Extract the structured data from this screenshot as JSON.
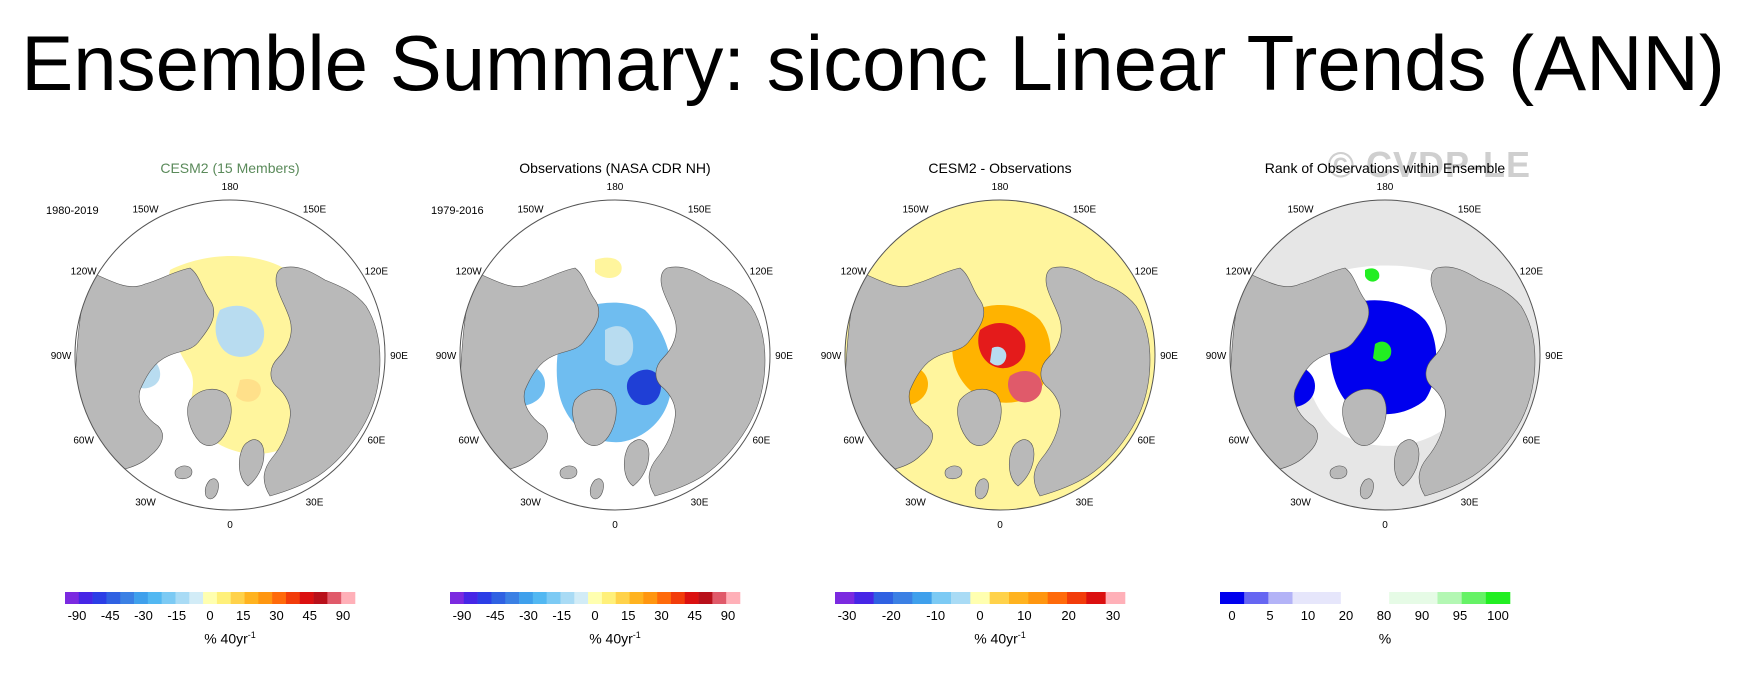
{
  "title": "Ensemble Summary: siconc Linear Trends (ANN)",
  "watermark": "© CVDP-LE",
  "colors": {
    "land": "#b9b9b9",
    "ocean": "#ffffff",
    "pale_yellow": "#fff59d",
    "pale_blue": "#b8dcf0",
    "mid_blue": "#6fbdf0",
    "deep_blue": "#1f3fd6",
    "orange": "#ffb300",
    "red": "#e41b1b",
    "rank_blue": "#0000ee",
    "rank_green": "#22ee22",
    "rank_gray": "#e6e6e6"
  },
  "longitude_labels": [
    "180",
    "150E",
    "120E",
    "90E",
    "60E",
    "30E",
    "0",
    "30W",
    "60W",
    "90W",
    "120W",
    "150W"
  ],
  "panels": [
    {
      "id": "cesm2",
      "title": "CESM2 (15 Members)",
      "years": "1980-2019",
      "colorbar": {
        "colors": [
          "#7b2ae0",
          "#4626e6",
          "#2b3ee6",
          "#2f61e2",
          "#3b80e4",
          "#3fa0ec",
          "#52b8f2",
          "#7ccaf4",
          "#a9dbf5",
          "#d2ecf7",
          "#ffffb0",
          "#fff07a",
          "#ffd24a",
          "#ffb320",
          "#ff9610",
          "#ff6a0a",
          "#f23c0a",
          "#db1010",
          "#b8101a",
          "#e05a6a",
          "#ffb0b8"
        ],
        "labels": [
          "-90",
          "-45",
          "-30",
          "-15",
          "0",
          "15",
          "30",
          "45",
          "90"
        ],
        "unit": "% 40yr",
        "unit_sup": "-1"
      }
    },
    {
      "id": "obs",
      "title": "Observations (NASA CDR NH)",
      "years": "1979-2016",
      "colorbar": {
        "colors": [
          "#7b2ae0",
          "#4626e6",
          "#2b3ee6",
          "#2f61e2",
          "#3b80e4",
          "#3fa0ec",
          "#52b8f2",
          "#7ccaf4",
          "#a9dbf5",
          "#d2ecf7",
          "#ffffb0",
          "#fff07a",
          "#ffd24a",
          "#ffb320",
          "#ff9610",
          "#ff6a0a",
          "#f23c0a",
          "#db1010",
          "#b8101a",
          "#e05a6a",
          "#ffb0b8"
        ],
        "labels": [
          "-90",
          "-45",
          "-30",
          "-15",
          "0",
          "15",
          "30",
          "45",
          "90"
        ],
        "unit": "% 40yr",
        "unit_sup": "-1"
      }
    },
    {
      "id": "diff",
      "title": "CESM2 - Observations",
      "years": "",
      "colorbar": {
        "colors": [
          "#7b2ae0",
          "#4626e6",
          "#2f61e2",
          "#3b80e4",
          "#3fa0ec",
          "#7ccaf4",
          "#a9dbf5",
          "#ffffb0",
          "#ffd24a",
          "#ffb320",
          "#ff9610",
          "#ff6a0a",
          "#f23c0a",
          "#db1010",
          "#ffb0b8"
        ],
        "labels": [
          "-30",
          "-20",
          "-10",
          "0",
          "10",
          "20",
          "30"
        ],
        "unit": "% 40yr",
        "unit_sup": "-1"
      }
    },
    {
      "id": "rank",
      "title": "Rank of Observations within Ensemble",
      "years": "",
      "colorbar": {
        "colors": [
          "#0000ee",
          "#6666f2",
          "#b3b3f7",
          "#e6e6fb",
          "#e6e6fb",
          "#ffffff",
          "#ffffff",
          "#e6fbe6",
          "#e6fbe6",
          "#b3f7b3",
          "#66f266",
          "#22ee22"
        ],
        "labels": [
          "0",
          "5",
          "10",
          "20",
          "80",
          "90",
          "95",
          "100"
        ],
        "unit": "%",
        "unit_sup": ""
      }
    }
  ]
}
